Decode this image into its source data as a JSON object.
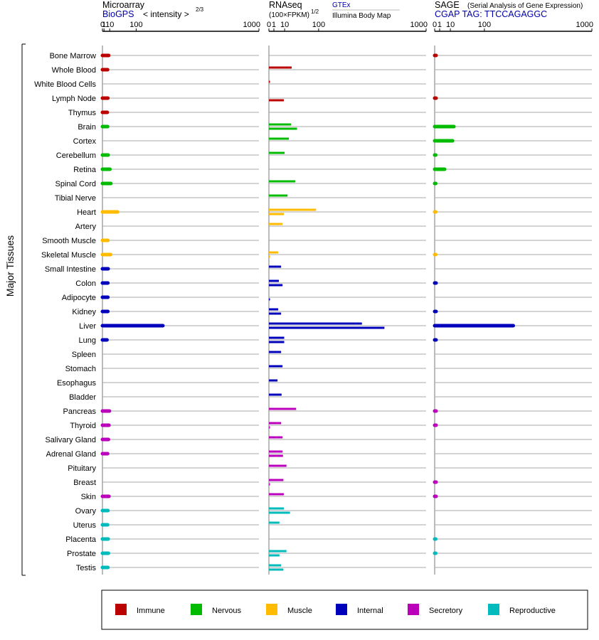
{
  "chart_data": {
    "type": "bar",
    "orientation": "horizontal",
    "y_axis_label": "Major Tissues",
    "categories": [
      "Bone Marrow",
      "Whole Blood",
      "White Blood Cells",
      "Lymph Node",
      "Thymus",
      "Brain",
      "Cortex",
      "Cerebellum",
      "Retina",
      "Spinal Cord",
      "Tibial Nerve",
      "Heart",
      "Artery",
      "Smooth Muscle",
      "Skeletal Muscle",
      "Small Intestine",
      "Colon",
      "Adipocyte",
      "Kidney",
      "Liver",
      "Lung",
      "Spleen",
      "Stomach",
      "Esophagus",
      "Bladder",
      "Pancreas",
      "Thyroid",
      "Salivary Gland",
      "Adrenal Gland",
      "Pituitary",
      "Breast",
      "Skin",
      "Ovary",
      "Uterus",
      "Placenta",
      "Prostate",
      "Testis"
    ],
    "category_groups": [
      "Immune",
      "Immune",
      "Immune",
      "Immune",
      "Immune",
      "Nervous",
      "Nervous",
      "Nervous",
      "Nervous",
      "Nervous",
      "Nervous",
      "Muscle",
      "Muscle",
      "Muscle",
      "Muscle",
      "Internal",
      "Internal",
      "Internal",
      "Internal",
      "Internal",
      "Internal",
      "Internal",
      "Internal",
      "Internal",
      "Internal",
      "Secretory",
      "Secretory",
      "Secretory",
      "Secretory",
      "Secretory",
      "Secretory",
      "Secretory",
      "Reproductive",
      "Reproductive",
      "Reproductive",
      "Reproductive",
      "Reproductive"
    ],
    "legend": [
      {
        "label": "Immune",
        "color": "#bb0000"
      },
      {
        "label": "Nervous",
        "color": "#00bb00"
      },
      {
        "label": "Muscle",
        "color": "#ffbb00"
      },
      {
        "label": "Internal",
        "color": "#0000bb"
      },
      {
        "label": "Secretory",
        "color": "#bb00bb"
      },
      {
        "label": "Reproductive",
        "color": "#00bbbb"
      }
    ],
    "panels": [
      {
        "id": "microarray",
        "title": "Microarray",
        "source": "BioGPS",
        "scale_note": "< intensity >",
        "scale_exponent": "2/3",
        "tick_labels": [
          "0",
          "1",
          "10",
          "100",
          "1000"
        ],
        "tick_values": [
          0,
          1,
          10,
          100,
          1000
        ],
        "xlim": [
          0,
          1000
        ],
        "transform": "power_2_3",
        "bar_style": "single",
        "values": [
          8,
          6,
          null,
          6.5,
          5.5,
          6,
          null,
          7,
          10.5,
          12.5,
          null,
          30,
          null,
          6.5,
          12,
          7,
          6.5,
          6.5,
          6.5,
          240,
          5,
          null,
          null,
          null,
          null,
          9.5,
          8.5,
          7.5,
          6,
          null,
          null,
          8.5,
          6.5,
          6,
          7,
          7.5,
          6.5
        ]
      },
      {
        "id": "rnaseq",
        "title": "RNAseq",
        "source": "GTEx",
        "source2": "Illumina Body Map",
        "scale_note": "(100×FPKM)",
        "scale_exponent": "1/2",
        "tick_labels": [
          "0",
          "1",
          "10",
          "100",
          "1000"
        ],
        "tick_values": [
          0,
          1,
          10,
          100,
          1000
        ],
        "xlim": [
          0,
          1000
        ],
        "transform": "sqrt",
        "bar_style": "dual",
        "values_gtex": [
          null,
          21,
          0.01,
          null,
          null,
          20,
          16,
          10,
          null,
          28,
          14,
          90,
          7.5,
          null,
          3.5,
          6,
          4,
          null,
          3.5,
          350,
          9.5,
          6,
          7.5,
          3,
          6.5,
          30,
          6,
          7.5,
          7.5,
          12.5,
          8.5,
          9,
          9,
          4.5,
          null,
          12.5,
          6
        ],
        "values_illumina": [
          null,
          null,
          null,
          9,
          null,
          32,
          null,
          null,
          null,
          null,
          null,
          9,
          null,
          null,
          0.01,
          null,
          7.5,
          0.01,
          6,
          540,
          9.5,
          null,
          null,
          null,
          null,
          null,
          0.01,
          null,
          8,
          null,
          0.01,
          null,
          18,
          null,
          null,
          4.5,
          8.5
        ]
      },
      {
        "id": "sage",
        "title": "SAGE",
        "subtitle": "(Serial Analysis of Gene Expression)",
        "source": "CGAP TAG: TTCCAGAGGC",
        "tick_labels": [
          "0",
          "1",
          "10",
          "100",
          "1000"
        ],
        "tick_values": [
          0,
          1,
          10,
          100,
          1000
        ],
        "xlim": [
          0,
          1000
        ],
        "transform": "sqrt",
        "bar_style": "single",
        "values": [
          0.08,
          null,
          null,
          0.08,
          null,
          15,
          13,
          0.03,
          4,
          0.03,
          null,
          0.01,
          null,
          null,
          0.01,
          null,
          0.08,
          null,
          0.08,
          250,
          0.08,
          null,
          null,
          null,
          null,
          0.08,
          0.08,
          null,
          null,
          null,
          0.08,
          0.08,
          null,
          null,
          0.03,
          0.03,
          null
        ]
      }
    ]
  }
}
